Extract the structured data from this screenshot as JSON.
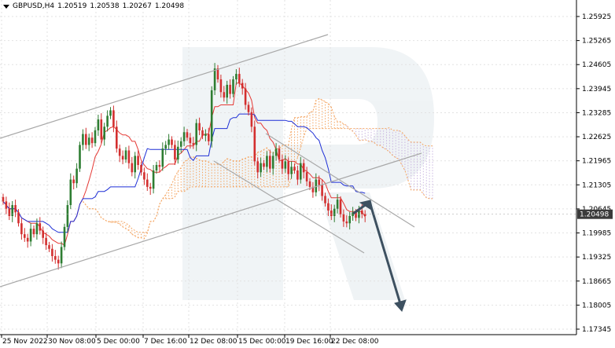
{
  "header": {
    "symbol": "GBPUSD,H4",
    "open": "1.20519",
    "high": "1.20538",
    "low": "1.20267",
    "close": "1.20498"
  },
  "colors": {
    "price_line_bg": "#3a3a3a",
    "bull": "#2e7d32",
    "bear": "#d32f2f",
    "tenkan": "#e53935",
    "kijun": "#1e2fd6",
    "cloud_orange": "#f4a460",
    "cloud_violet": "#c9b5e0",
    "channel": "#a8a8a8",
    "arrow": "#3d5060",
    "grid": "#e2e2e2"
  },
  "chart_data": {
    "type": "candlestick",
    "symbol": "GBPUSD",
    "timeframe": "H4",
    "ylim": [
      1.17345,
      1.2625
    ],
    "y_ticks": [
      "1.25925",
      "1.25265",
      "1.24605",
      "1.23945",
      "1.23285",
      "1.22625",
      "1.21965",
      "1.21305",
      "1.20645",
      "1.19985",
      "1.19325",
      "1.18665",
      "1.18005",
      "1.17345"
    ],
    "x_ticks": [
      "25 Nov 2022",
      "30 Nov 08:00",
      "5 Dec 00:00",
      "7 Dec 16:00",
      "12 Dec 08:00",
      "15 Dec 00:00",
      "19 Dec 16:00",
      "22 Dec 08:00"
    ],
    "current_price": "1.20498",
    "closes": [
      1.2085,
      1.2065,
      1.2045,
      1.2075,
      1.2055,
      1.2025,
      1.1995,
      1.1985,
      1.1975,
      1.201,
      1.1995,
      1.2025,
      1.2005,
      1.1985,
      1.1965,
      1.1955,
      1.1935,
      1.1925,
      1.1915,
      1.196,
      1.2015,
      1.2075,
      1.2145,
      1.2135,
      1.2175,
      1.224,
      1.227,
      1.224,
      1.226,
      1.2245,
      1.228,
      1.231,
      1.2255,
      1.229,
      1.232,
      1.2335,
      1.229,
      1.223,
      1.221,
      1.22,
      1.2225,
      1.219,
      1.2165,
      1.221,
      1.2185,
      1.2165,
      1.2145,
      1.2125,
      1.212,
      1.217,
      1.2185,
      1.218,
      1.223,
      1.224,
      1.2255,
      1.224,
      1.22,
      1.2235,
      1.225,
      1.2275,
      1.226,
      1.2245,
      1.224,
      1.23,
      1.228,
      1.2265,
      1.227,
      1.225,
      1.239,
      1.245,
      1.242,
      1.2385,
      1.237,
      1.2405,
      1.238,
      1.242,
      1.2435,
      1.241,
      1.2395,
      1.235,
      1.233,
      1.229,
      1.2195,
      1.2165,
      1.219,
      1.218,
      1.221,
      1.2175,
      1.221,
      1.223,
      1.22,
      1.2175,
      1.2195,
      1.216,
      1.218,
      1.217,
      1.2145,
      1.219,
      1.2165,
      1.214,
      1.2125,
      1.211,
      1.2145,
      1.213,
      1.21,
      1.208,
      1.206,
      1.2045,
      1.2065,
      1.209,
      1.205,
      1.203,
      1.2025,
      1.2045,
      1.2055,
      1.204,
      1.206,
      1.205,
      1.2045
    ],
    "channel_up": [
      {
        "x": "25 Nov 2022",
        "y": 1.184
      },
      {
        "x": "22 Dec 08:00",
        "y": 1.2205
      }
    ],
    "channel_down": [
      {
        "x": "15 Dec 00:00",
        "y": 1.22
      },
      {
        "x": "22 Dec 08:00",
        "y": 1.1935
      }
    ],
    "forecast": {
      "from": 1.205,
      "to": 1.179
    }
  }
}
